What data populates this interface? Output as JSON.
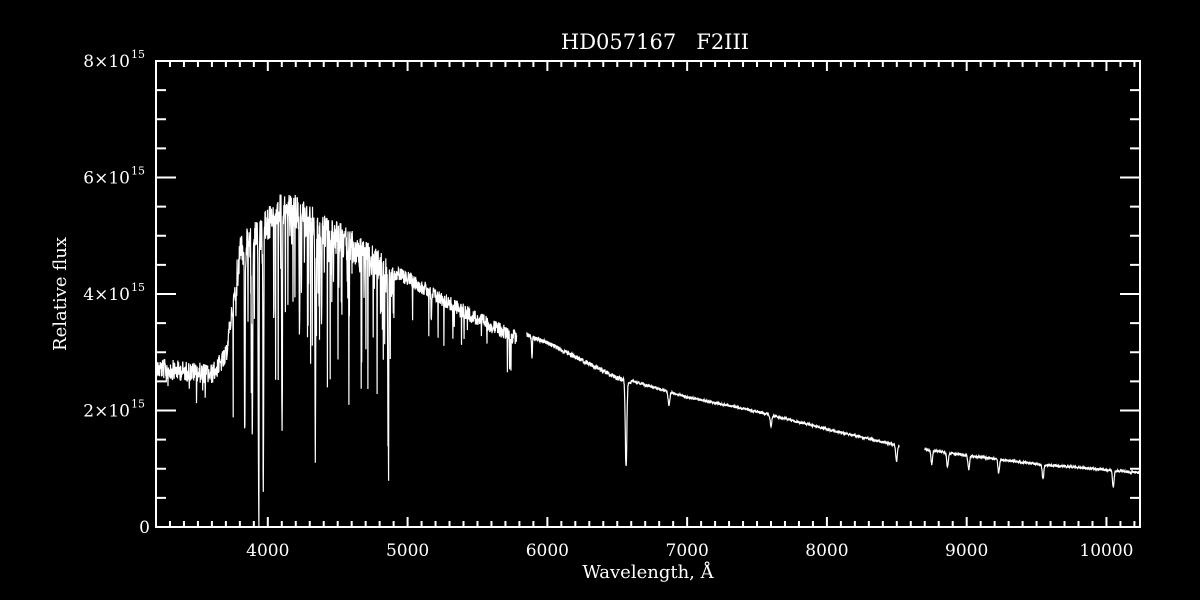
{
  "chart_data": {
    "type": "line",
    "title": "HD057167   F2III",
    "xlabel": "Wavelength, Å",
    "ylabel": "Relative flux",
    "xlim": [
      3200,
      10240
    ],
    "ylim": [
      0,
      8000000000000000.0
    ],
    "x_ticks": [
      4000,
      5000,
      6000,
      7000,
      8000,
      9000,
      10000
    ],
    "x_tick_labels": [
      "4000",
      "5000",
      "6000",
      "7000",
      "8000",
      "9000",
      "10000"
    ],
    "y_ticks": [
      0,
      2000000000000000.0,
      4000000000000000.0,
      6000000000000000.0,
      8000000000000000.0
    ],
    "y_tick_labels": [
      {
        "mantissa": "0",
        "exp": ""
      },
      {
        "mantissa": "2×10",
        "exp": "15"
      },
      {
        "mantissa": "4×10",
        "exp": "15"
      },
      {
        "mantissa": "6×10",
        "exp": "15"
      },
      {
        "mantissa": "8×10",
        "exp": "15"
      }
    ],
    "grid": false,
    "line_color": "#ffffff",
    "background": "#000000",
    "data_gaps": [
      [
        5780,
        5850
      ],
      [
        8520,
        8700
      ]
    ],
    "continuum_units": "1e15",
    "continuum": [
      [
        3200,
        2.9
      ],
      [
        3600,
        2.8
      ],
      [
        3700,
        3.1
      ],
      [
        3750,
        4.0
      ],
      [
        3800,
        5.0
      ],
      [
        4000,
        5.5
      ],
      [
        4100,
        5.8
      ],
      [
        4200,
        5.7
      ],
      [
        4400,
        5.4
      ],
      [
        4600,
        5.1
      ],
      [
        4800,
        4.75
      ],
      [
        4880,
        4.5
      ],
      [
        5000,
        4.4
      ],
      [
        5200,
        4.1
      ],
      [
        5500,
        3.7
      ],
      [
        5750,
        3.4
      ],
      [
        5850,
        3.35
      ],
      [
        6000,
        3.2
      ],
      [
        6500,
        2.6
      ],
      [
        7000,
        2.25
      ],
      [
        7500,
        2.0
      ],
      [
        8000,
        1.7
      ],
      [
        8500,
        1.42
      ],
      [
        8700,
        1.35
      ],
      [
        9000,
        1.25
      ],
      [
        9500,
        1.1
      ],
      [
        10000,
        1.0
      ],
      [
        10240,
        0.95
      ]
    ],
    "absorption_lines": [
      [
        3835,
        1.9
      ],
      [
        3889,
        1.8
      ],
      [
        3934,
        0.9
      ],
      [
        3968,
        1.0
      ],
      [
        4102,
        1.7
      ],
      [
        4227,
        3.5
      ],
      [
        4340,
        1.55
      ],
      [
        4384,
        4.0
      ],
      [
        4861,
        1.45
      ],
      [
        5170,
        3.6
      ],
      [
        5890,
        2.9
      ],
      [
        6563,
        1.05
      ],
      [
        6870,
        2.1
      ],
      [
        7600,
        1.75
      ],
      [
        8498,
        1.15
      ],
      [
        8542,
        1.1
      ],
      [
        8750,
        1.1
      ],
      [
        8863,
        1.05
      ],
      [
        9015,
        1.0
      ],
      [
        9229,
        0.95
      ],
      [
        9546,
        0.85
      ],
      [
        10049,
        0.7
      ]
    ]
  }
}
